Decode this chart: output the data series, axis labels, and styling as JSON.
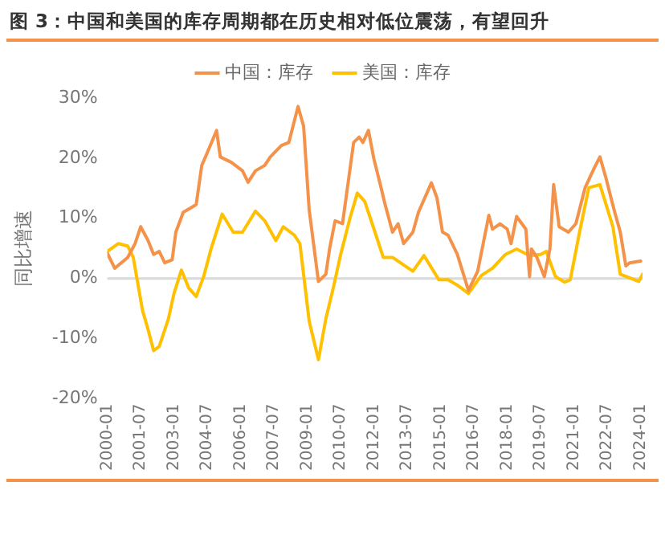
{
  "chart_data": {
    "type": "line",
    "title": "图 3：中国和美国的库存周期都在历史相对低位震荡，有望回升",
    "ylabel": "同比增速",
    "xlim": [
      "2000-01",
      "2024-02"
    ],
    "xticks": [
      "2000-01",
      "2001-07",
      "2003-01",
      "2004-07",
      "2006-01",
      "2007-07",
      "2009-01",
      "2010-07",
      "2012-01",
      "2013-07",
      "2015-01",
      "2016-07",
      "2018-01",
      "2019-07",
      "2021-01",
      "2022-07",
      "2024-01"
    ],
    "ylim": [
      -20,
      30
    ],
    "yticks": [
      {
        "value": -20,
        "label": "-20%"
      },
      {
        "value": -10,
        "label": "-10%"
      },
      {
        "value": 0,
        "label": "0%"
      },
      {
        "value": 10,
        "label": "10%"
      },
      {
        "value": 20,
        "label": "20%"
      },
      {
        "value": 30,
        "label": "30%"
      }
    ],
    "grid": false,
    "ref_lines": [
      {
        "axis": "y",
        "value": 0,
        "color": "#d9d9d9"
      }
    ],
    "legend": "top",
    "marker": "none",
    "line_style": "solid",
    "series": [
      {
        "name": "中国：库存",
        "color": "#f4924a",
        "x": [
          "2000-01",
          "2000-05",
          "2000-12",
          "2001-04",
          "2001-07",
          "2001-11",
          "2002-02",
          "2002-05",
          "2002-08",
          "2002-12",
          "2003-02",
          "2003-06",
          "2003-11",
          "2004-01",
          "2004-04",
          "2004-06",
          "2004-12",
          "2005-02",
          "2005-08",
          "2006-02",
          "2006-05",
          "2006-09",
          "2007-02",
          "2007-05",
          "2007-11",
          "2008-03",
          "2008-08",
          "2008-11",
          "2009-02",
          "2009-07",
          "2009-11",
          "2010-01",
          "2010-04",
          "2010-08",
          "2011-02",
          "2011-05",
          "2011-07",
          "2011-10",
          "2012-01",
          "2012-04",
          "2012-07",
          "2012-11",
          "2013-02",
          "2013-05",
          "2013-10",
          "2014-01",
          "2014-08",
          "2014-11",
          "2015-02",
          "2015-05",
          "2015-10",
          "2016-04",
          "2016-09",
          "2017-03",
          "2017-05",
          "2017-09",
          "2018-01",
          "2018-03",
          "2018-06",
          "2018-11",
          "2019-01",
          "2019-02",
          "2019-05",
          "2019-09",
          "2019-12",
          "2020-02",
          "2020-05",
          "2020-10",
          "2021-02",
          "2021-07",
          "2021-12",
          "2022-03",
          "2022-06",
          "2022-11",
          "2023-02",
          "2023-05",
          "2023-07",
          "2024-01"
        ],
        "values": [
          4.2,
          1.7,
          3.5,
          5.8,
          8.6,
          6.3,
          4.0,
          4.5,
          2.6,
          3.1,
          7.7,
          11.0,
          11.9,
          12.3,
          18.8,
          20.2,
          24.6,
          20.2,
          19.3,
          17.9,
          16.0,
          17.9,
          18.8,
          20.2,
          22.1,
          22.6,
          28.6,
          25.3,
          11.4,
          -0.5,
          0.7,
          4.9,
          9.6,
          9.1,
          22.6,
          23.5,
          22.6,
          24.6,
          19.8,
          16.1,
          12.3,
          7.7,
          9.1,
          5.8,
          7.7,
          11.0,
          15.9,
          13.4,
          7.7,
          7.2,
          4.0,
          -2.0,
          1.2,
          10.5,
          8.2,
          9.1,
          8.2,
          5.8,
          10.3,
          8.2,
          0.3,
          4.9,
          3.5,
          0.3,
          4.9,
          15.6,
          8.6,
          7.7,
          9.1,
          15.1,
          18.4,
          20.2,
          17.0,
          11.0,
          7.7,
          2.1,
          2.6,
          2.9
        ]
      },
      {
        "name": "美国：库存",
        "color": "#ffc000",
        "x": [
          "2000-01",
          "2000-07",
          "2000-12",
          "2001-03",
          "2001-08",
          "2001-11",
          "2002-02",
          "2002-05",
          "2002-10",
          "2003-01",
          "2003-05",
          "2003-09",
          "2004-01",
          "2004-05",
          "2004-09",
          "2005-03",
          "2005-09",
          "2006-02",
          "2006-09",
          "2007-02",
          "2007-08",
          "2007-12",
          "2008-06",
          "2008-09",
          "2009-02",
          "2009-07",
          "2009-08",
          "2009-11",
          "2010-03",
          "2010-07",
          "2010-12",
          "2011-04",
          "2011-08",
          "2012-01",
          "2012-06",
          "2012-11",
          "2013-10",
          "2014-04",
          "2014-12",
          "2015-05",
          "2015-10",
          "2016-04",
          "2016-11",
          "2017-05",
          "2017-12",
          "2018-06",
          "2019-01",
          "2019-07",
          "2019-10",
          "2020-03",
          "2020-08",
          "2020-11",
          "2021-04",
          "2021-09",
          "2022-03",
          "2022-10",
          "2023-02",
          "2023-07",
          "2023-12",
          "2024-02"
        ],
        "values": [
          4.5,
          5.8,
          5.4,
          3.5,
          -5.3,
          -8.5,
          -12.0,
          -11.3,
          -6.7,
          -2.5,
          1.4,
          -1.6,
          -3.0,
          0.3,
          4.9,
          10.7,
          7.7,
          7.7,
          11.2,
          9.6,
          6.3,
          8.6,
          7.2,
          5.8,
          -7.1,
          -13.5,
          -11.8,
          -6.7,
          -1.6,
          4.0,
          10.0,
          14.2,
          12.8,
          8.2,
          3.5,
          3.5,
          1.2,
          3.8,
          -0.2,
          -0.2,
          -1.1,
          -2.5,
          0.5,
          1.7,
          4.0,
          4.9,
          3.8,
          4.0,
          4.5,
          0.3,
          -0.6,
          -0.2,
          7.7,
          15.1,
          15.6,
          8.6,
          0.7,
          0.1,
          -0.5,
          0.7
        ]
      }
    ]
  }
}
